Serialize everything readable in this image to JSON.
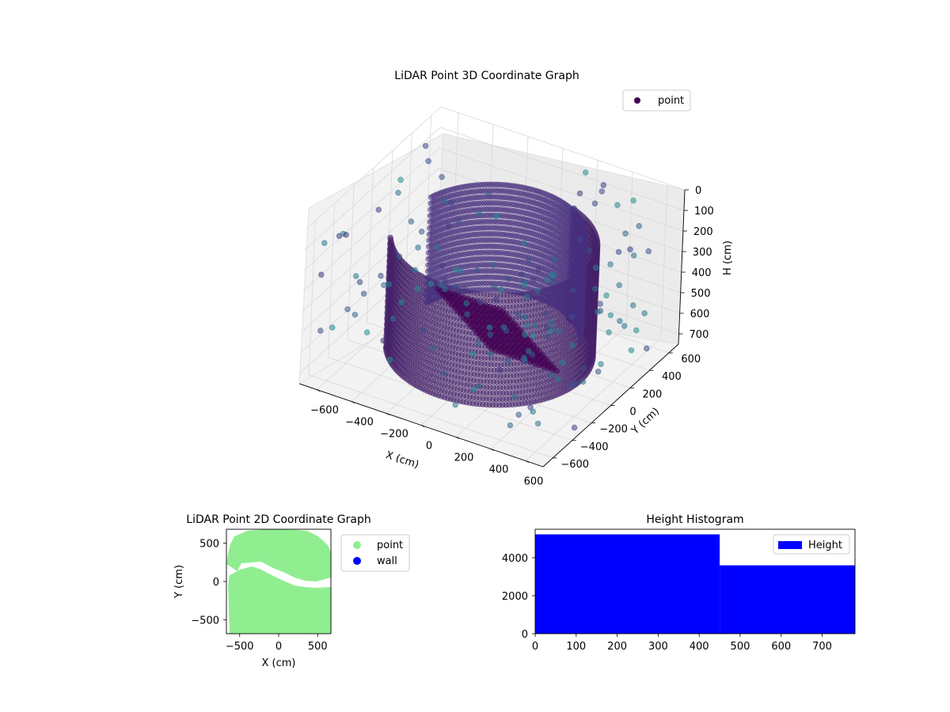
{
  "chart_data": [
    {
      "type": "scatter",
      "projection": "3d",
      "title": "LiDAR Point 3D Coordinate Graph",
      "xlabel": "X (cm)",
      "ylabel": "Y (cm)",
      "zlabel": "H (cm)",
      "xlim": [
        -700,
        700
      ],
      "ylim": [
        -700,
        700
      ],
      "zlim": [
        750,
        0
      ],
      "x_ticks": [
        "−600",
        "−400",
        "−200",
        "0",
        "200",
        "400",
        "600"
      ],
      "y_ticks": [
        "−600",
        "−400",
        "−200",
        "0",
        "200",
        "400",
        "600"
      ],
      "z_ticks": [
        "0",
        "100",
        "200",
        "300",
        "400",
        "500",
        "600",
        "700"
      ],
      "grid": true,
      "colormap": "viridis",
      "legend": {
        "placement": "top-right",
        "entries": [
          {
            "label": "point",
            "color": "#440154"
          }
        ]
      },
      "series": [
        {
          "name": "point",
          "description_points": [
            {
              "x": -550,
              "y": 100,
              "h": 650
            },
            {
              "x": -500,
              "y": -100,
              "h": 700
            },
            {
              "x": 300,
              "y": 250,
              "h": 720
            },
            {
              "x": 0,
              "y": 0,
              "h": 150
            },
            {
              "x": 600,
              "y": -200,
              "h": 300
            },
            {
              "x": -600,
              "y": 400,
              "h": 200
            }
          ]
        }
      ]
    },
    {
      "type": "scatter",
      "title": "LiDAR Point 2D Coordinate Graph",
      "xlabel": "X (cm)",
      "ylabel": "Y (cm)",
      "xlim": [
        -670,
        670
      ],
      "ylim": [
        -680,
        680
      ],
      "x_ticks": [
        "−500",
        "0",
        "500"
      ],
      "y_ticks": [
        "−500",
        "0",
        "500"
      ],
      "legend": {
        "placement": "outside-right",
        "entries": [
          {
            "label": "point",
            "color": "#90ee90"
          },
          {
            "label": "wall",
            "color": "#0000ff"
          }
        ]
      }
    },
    {
      "type": "bar",
      "title": "Height Histogram",
      "xlim": [
        0,
        780
      ],
      "ylim": [
        0,
        5500
      ],
      "x_ticks": [
        "0",
        "100",
        "200",
        "300",
        "400",
        "500",
        "600",
        "700"
      ],
      "y_ticks": [
        "0",
        "2000",
        "4000"
      ],
      "legend": {
        "placement": "top-right",
        "entries": [
          {
            "label": "Height",
            "color": "#0000ff"
          }
        ]
      },
      "bins": [
        {
          "from": 0,
          "to": 450,
          "count": 5230
        },
        {
          "from": 450,
          "to": 780,
          "count": 3600
        }
      ],
      "color": "#0000ff"
    }
  ]
}
